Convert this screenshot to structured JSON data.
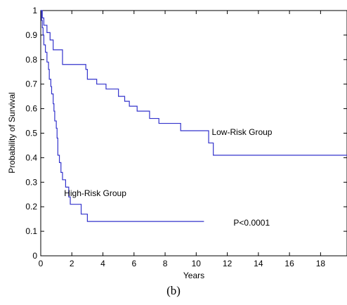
{
  "caption": "(b)",
  "chart_data": {
    "type": "line",
    "title": "",
    "xlabel": "Years",
    "ylabel": "Probability of Survival",
    "xlim": [
      0,
      19.7
    ],
    "ylim": [
      0,
      1
    ],
    "xticks": [
      "0",
      "2",
      "4",
      "6",
      "8",
      "10",
      "12",
      "14",
      "16",
      "18"
    ],
    "yticks": [
      "0",
      "0.1",
      "0.2",
      "0.3",
      "0.4",
      "0.5",
      "0.6",
      "0.7",
      "0.8",
      "0.9",
      "1"
    ],
    "grid": false,
    "line_color": "#3333cc",
    "series": [
      {
        "name": "Low-Risk Group",
        "step_points": [
          [
            0,
            1
          ],
          [
            0.1,
            0.97
          ],
          [
            0.2,
            0.94
          ],
          [
            0.4,
            0.91
          ],
          [
            0.6,
            0.88
          ],
          [
            0.8,
            0.84
          ],
          [
            1.4,
            0.78
          ],
          [
            2.9,
            0.76
          ],
          [
            3.0,
            0.72
          ],
          [
            3.6,
            0.7
          ],
          [
            4.2,
            0.68
          ],
          [
            5.0,
            0.65
          ],
          [
            5.4,
            0.63
          ],
          [
            5.7,
            0.61
          ],
          [
            6.2,
            0.59
          ],
          [
            7.0,
            0.56
          ],
          [
            7.6,
            0.54
          ],
          [
            9.0,
            0.51
          ],
          [
            10.8,
            0.46
          ],
          [
            11.1,
            0.41
          ],
          [
            19.7,
            0.41
          ]
        ]
      },
      {
        "name": "High-Risk Group",
        "step_points": [
          [
            0,
            1
          ],
          [
            0.05,
            0.96
          ],
          [
            0.1,
            0.93
          ],
          [
            0.15,
            0.9
          ],
          [
            0.2,
            0.86
          ],
          [
            0.3,
            0.83
          ],
          [
            0.4,
            0.79
          ],
          [
            0.5,
            0.76
          ],
          [
            0.55,
            0.72
          ],
          [
            0.65,
            0.69
          ],
          [
            0.7,
            0.66
          ],
          [
            0.8,
            0.62
          ],
          [
            0.85,
            0.59
          ],
          [
            0.9,
            0.55
          ],
          [
            1.0,
            0.52
          ],
          [
            1.05,
            0.48
          ],
          [
            1.1,
            0.41
          ],
          [
            1.2,
            0.38
          ],
          [
            1.3,
            0.34
          ],
          [
            1.4,
            0.31
          ],
          [
            1.6,
            0.28
          ],
          [
            1.8,
            0.24
          ],
          [
            1.9,
            0.21
          ],
          [
            2.6,
            0.17
          ],
          [
            3.0,
            0.14
          ],
          [
            10.5,
            0.14
          ]
        ]
      }
    ],
    "annotations": [
      {
        "text": "Low-Risk Group",
        "x": 11.0,
        "y": 0.505
      },
      {
        "text": "High-Risk Group",
        "x": 1.5,
        "y": 0.255
      },
      {
        "text": "P<0.0001",
        "x": 12.4,
        "y": 0.135
      }
    ]
  }
}
